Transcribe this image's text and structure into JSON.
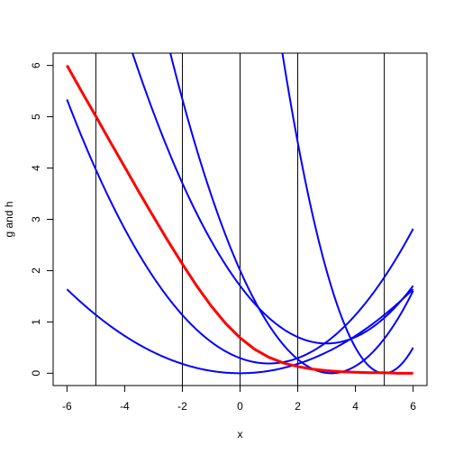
{
  "chart_data": {
    "type": "line",
    "xlabel": "x",
    "ylabel": "g and h",
    "xlim": [
      -6.48,
      6.48
    ],
    "ylim": [
      -0.24,
      6.24
    ],
    "x_ticks": [
      -6,
      -4,
      -2,
      0,
      2,
      4,
      6
    ],
    "x_tick_labels": [
      "-6",
      "-4",
      "-2",
      "0",
      "2",
      "4",
      "6"
    ],
    "y_ticks": [
      0,
      1,
      2,
      3,
      4,
      5,
      6
    ],
    "y_tick_labels": [
      "0",
      "1",
      "2",
      "3",
      "4",
      "5",
      "6"
    ],
    "vertical_lines": [
      -5,
      -2,
      0,
      2,
      5
    ],
    "colors": {
      "main": "#ff0000",
      "tangent": "#0000ff",
      "vline": "#000000"
    },
    "main_curve": {
      "x": [
        -6,
        -5.5,
        -5,
        -4.5,
        -4,
        -3.5,
        -3,
        -2.5,
        -2,
        -1.5,
        -1,
        -0.5,
        0,
        0.5,
        1,
        1.5,
        2,
        2.5,
        3,
        3.5,
        4,
        4.5,
        5,
        5.5,
        6
      ],
      "y": [
        6.0,
        5.5,
        5.01,
        4.51,
        4.02,
        3.53,
        3.05,
        2.58,
        2.13,
        1.7,
        1.31,
        0.97,
        0.69,
        0.47,
        0.31,
        0.2,
        0.13,
        0.08,
        0.05,
        0.03,
        0.02,
        0.01,
        0.01,
        0.0,
        0.0
      ]
    },
    "tangent_curves": [
      {
        "a": 0.0455,
        "b": -0.455,
        "c": 0.0
      },
      {
        "a": 0.105,
        "b": -0.105,
        "c": 1.0
      },
      {
        "a": 0.125,
        "b": -0.125,
        "c": 3.0
      },
      {
        "a": 0.2001,
        "b": 0.2001,
        "c": 3.1666
      },
      {
        "a": 0.5,
        "b": 0.5,
        "c": 5.0
      }
    ]
  }
}
